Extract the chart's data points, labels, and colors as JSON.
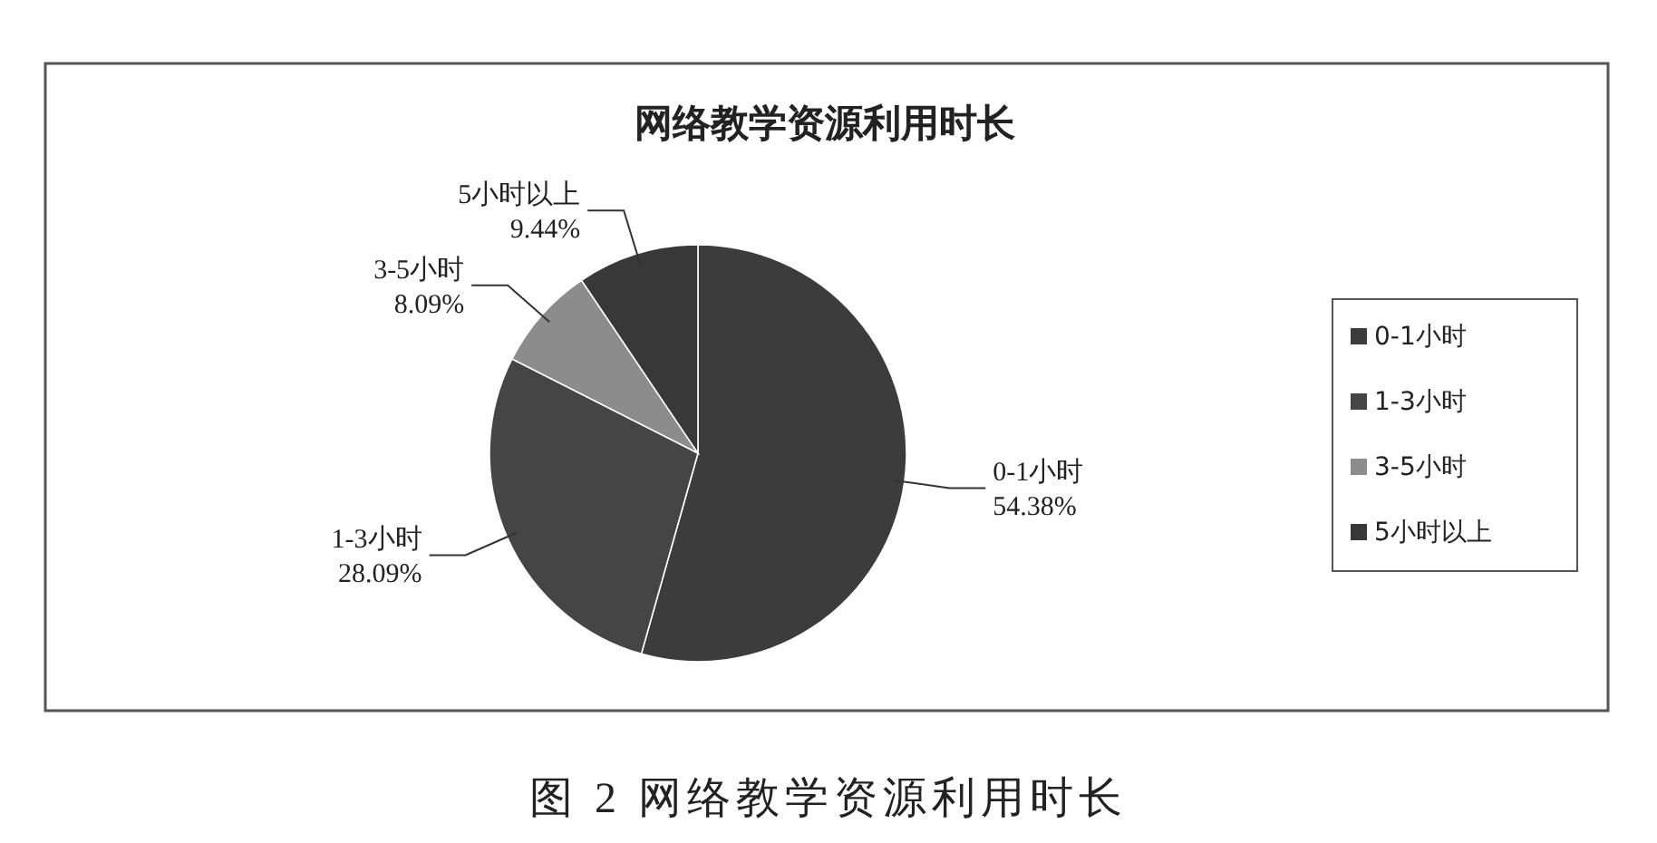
{
  "chart_data": {
    "type": "pie",
    "title": "网络教学资源利用时长",
    "categories": [
      "0-1小时",
      "1-3小时",
      "3-5小时",
      "5小时以上"
    ],
    "values": [
      54.38,
      28.09,
      8.09,
      9.44
    ],
    "colors": [
      "#3c3c3c",
      "#454545",
      "#8c8c8c",
      "#383838"
    ],
    "value_labels": [
      "54.38%",
      "28.09%",
      "8.09%",
      "9.44%"
    ],
    "legend": "right",
    "annotations": [
      "图 2  网络教学资源利用时长"
    ]
  }
}
